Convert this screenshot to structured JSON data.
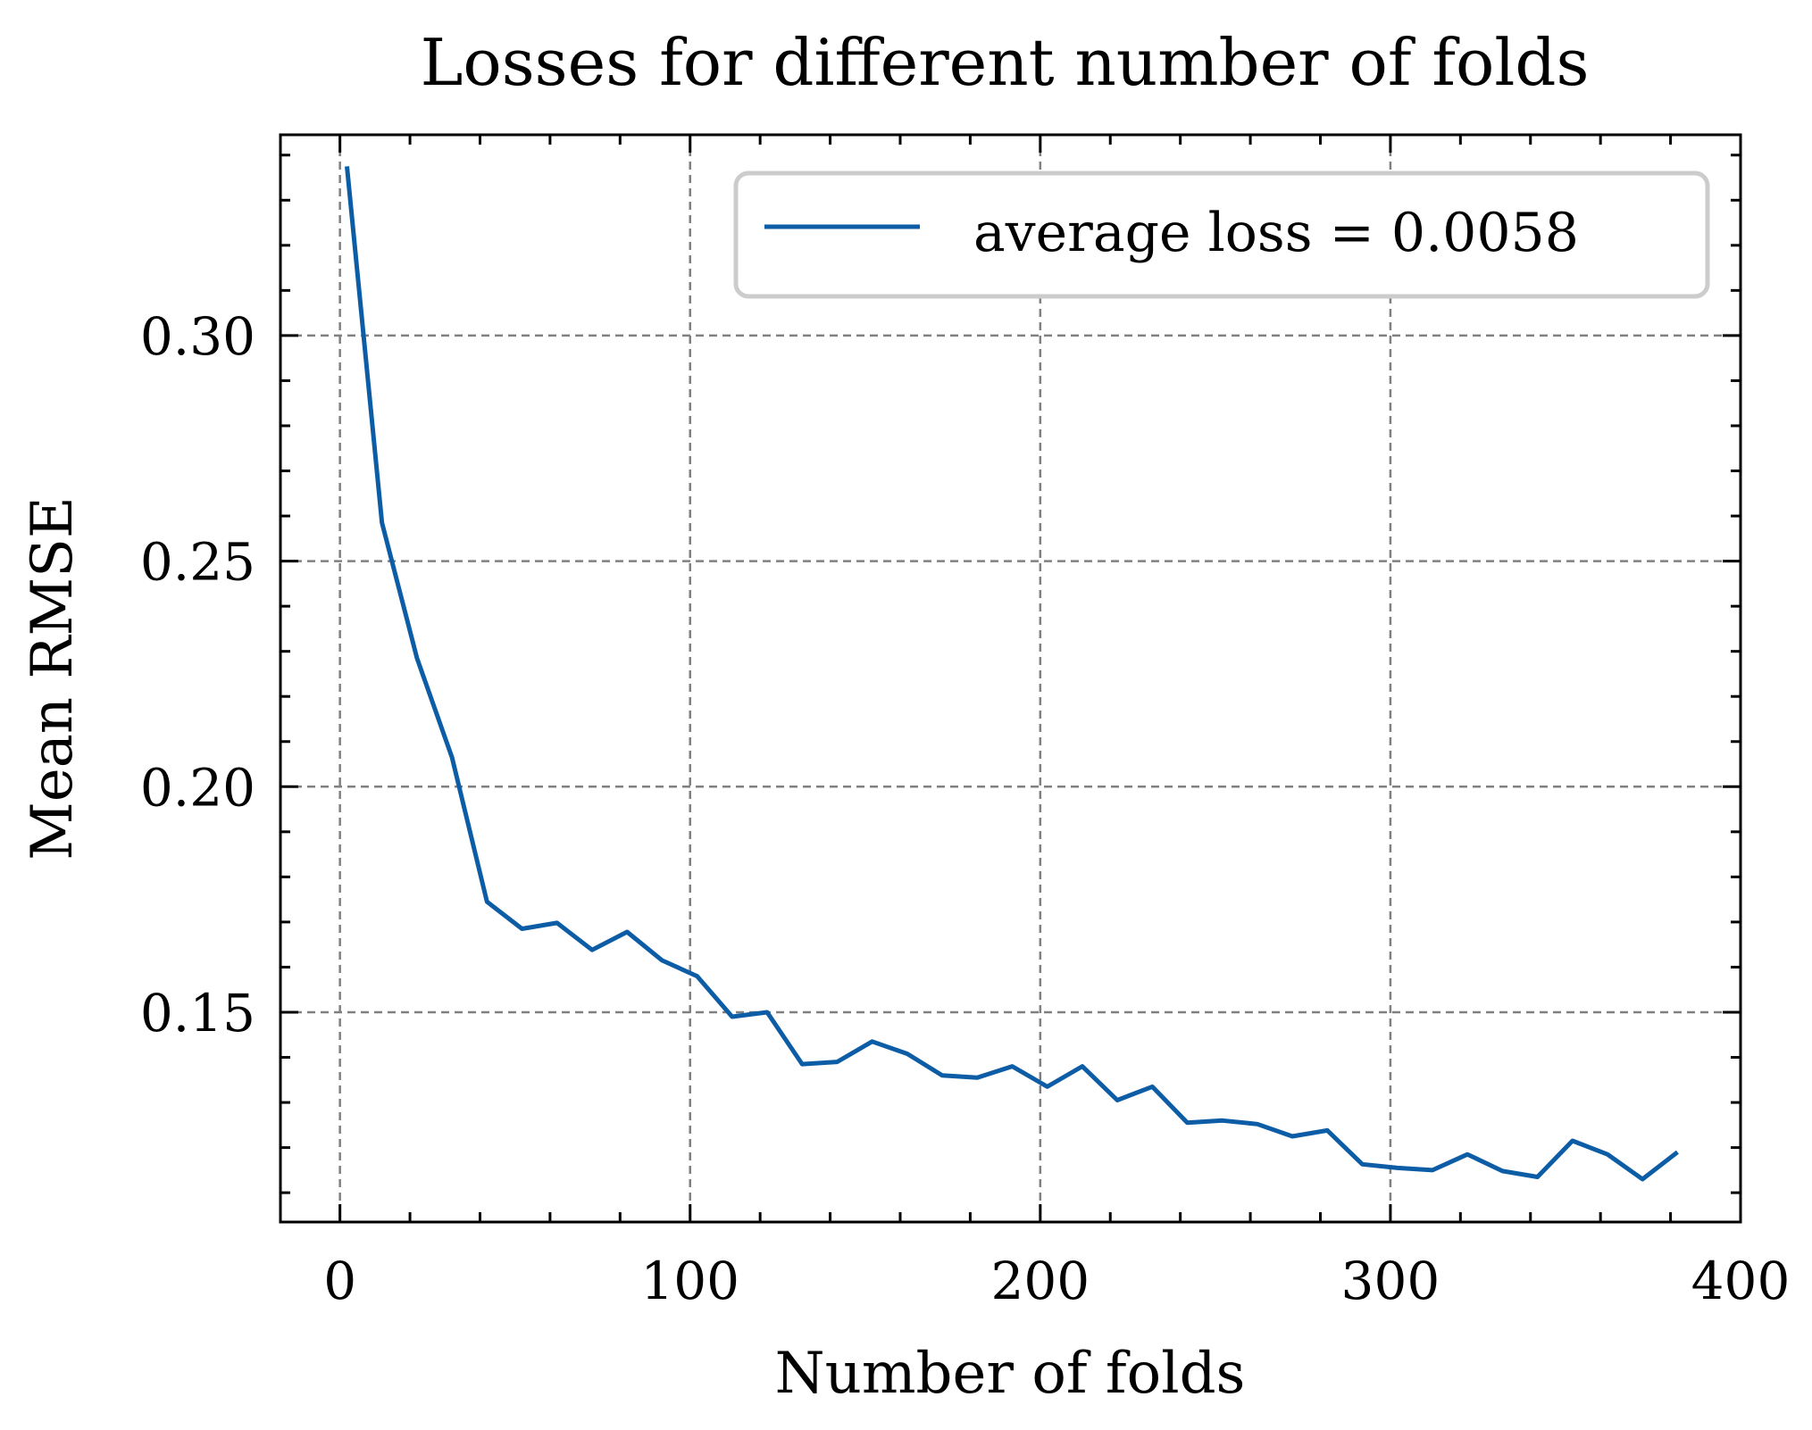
{
  "chart_data": {
    "type": "line",
    "title": "Losses for different number of folds",
    "xlabel": "Number of folds",
    "ylabel": "Mean RMSE",
    "xlim": [
      -17,
      400
    ],
    "ylim": [
      0.1035,
      0.3445
    ],
    "x_ticks": [
      0,
      100,
      200,
      300,
      400
    ],
    "x_tick_labels": [
      "0",
      "100",
      "200",
      "300",
      "400"
    ],
    "y_ticks": [
      0.15,
      0.2,
      0.25,
      0.3
    ],
    "y_tick_labels": [
      "0.15",
      "0.20",
      "0.25",
      "0.30"
    ],
    "grid": true,
    "grid_style": "dashed",
    "legend_position": "top-right",
    "series": [
      {
        "name": "average loss = 0.0058",
        "color": "#0C5DA5",
        "x": [
          2,
          12,
          22,
          32,
          42,
          52,
          62,
          72,
          82,
          92,
          102,
          112,
          122,
          132,
          142,
          152,
          162,
          172,
          182,
          192,
          202,
          212,
          222,
          232,
          242,
          252,
          262,
          272,
          282,
          292,
          302,
          312,
          322,
          332,
          342,
          352,
          362,
          372,
          382
        ],
        "y": [
          0.3375,
          0.2585,
          0.2285,
          0.2065,
          0.1745,
          0.1685,
          0.1698,
          0.1638,
          0.1678,
          0.1615,
          0.158,
          0.149,
          0.15,
          0.1385,
          0.139,
          0.1435,
          0.1408,
          0.136,
          0.1355,
          0.138,
          0.1335,
          0.138,
          0.1305,
          0.1335,
          0.1255,
          0.126,
          0.1252,
          0.1225,
          0.1238,
          0.1163,
          0.1155,
          0.115,
          0.1185,
          0.1148,
          0.1135,
          0.1215,
          0.1185,
          0.113,
          0.119
        ]
      }
    ]
  }
}
